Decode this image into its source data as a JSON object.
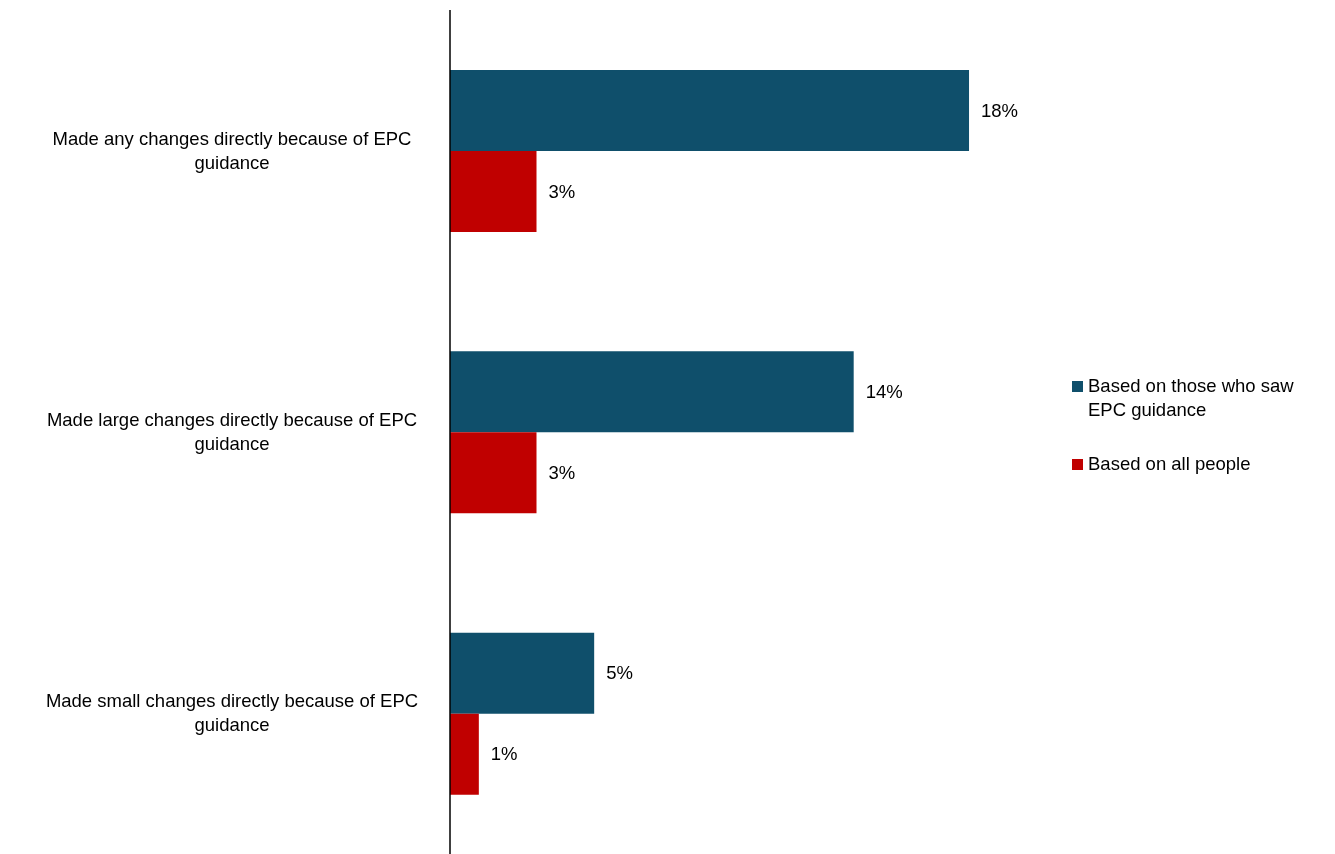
{
  "chart_data": {
    "type": "bar",
    "orientation": "horizontal",
    "categories": [
      "Made any changes directly because of EPC guidance",
      "Made large changes directly because of EPC guidance",
      "Made small changes directly because of EPC guidance"
    ],
    "series": [
      {
        "name": "Based on those who saw EPC guidance",
        "color": "#0f4f6b",
        "values": [
          18,
          14,
          5
        ],
        "value_labels": [
          "18%",
          "14%",
          "5%"
        ]
      },
      {
        "name": "Based on all people",
        "color": "#c00000",
        "values": [
          3,
          3,
          1
        ],
        "value_labels": [
          "3%",
          "3%",
          "1%"
        ]
      }
    ],
    "legend": "right",
    "tick_labels": "y"
  }
}
